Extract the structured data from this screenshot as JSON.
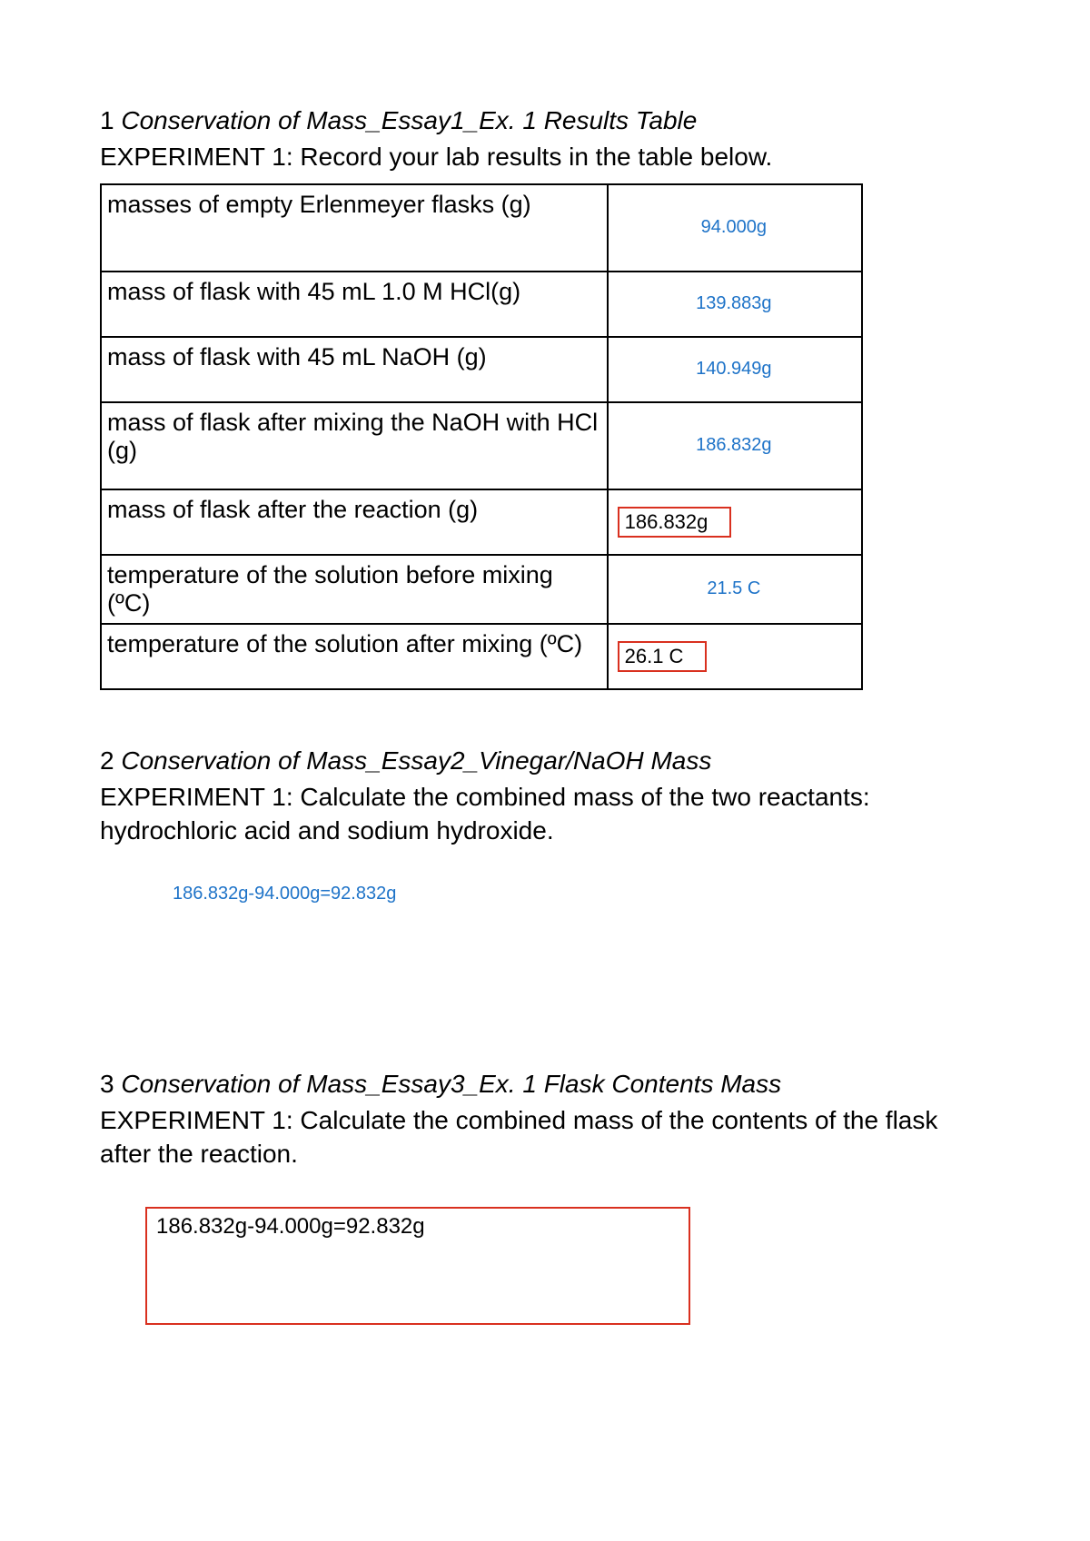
{
  "section1": {
    "num": "1",
    "title": "Conservation of Mass_Essay1_Ex. 1 Results Table",
    "subtitle": "EXPERIMENT 1: Record your lab results in the table below.",
    "rows": [
      {
        "label": "masses of empty Erlenmeyer flasks (g)",
        "value": "94.000g",
        "boxed": false,
        "tall": true
      },
      {
        "label": "mass of flask with 45 mL  1.0 M HCl(g)",
        "value": "139.883g",
        "boxed": false,
        "tall": false
      },
      {
        "label": "mass of flask with 45 mL NaOH (g)",
        "value": "140.949g",
        "boxed": false,
        "tall": false
      },
      {
        "label": "mass of flask after mixing the NaOH with HCl (g)",
        "value": "186.832g",
        "boxed": false,
        "tall": true
      },
      {
        "label": "mass of flask after the reaction (g)",
        "value": "186.832g",
        "boxed": true,
        "tall": false
      },
      {
        "label": "temperature of the solution before mixing (ºC)",
        "value": "21.5 C",
        "boxed": false,
        "tall": false
      },
      {
        "label": "temperature of the solution after mixing (ºC)",
        "value": "26.1 C",
        "boxed": true,
        "tall": false
      }
    ]
  },
  "section2": {
    "num": "2",
    "title": "Conservation of Mass_Essay2_Vinegar/NaOH Mass",
    "subtitle": "EXPERIMENT 1: Calculate the combined mass of the two reactants: hydrochloric acid and sodium hydroxide.",
    "answer": "186.832g-94.000g=92.832g"
  },
  "section3": {
    "num": "3",
    "title": "Conservation of Mass_Essay3_Ex. 1 Flask Contents Mass",
    "subtitle": "EXPERIMENT 1: Calculate the combined mass of the contents of the flask after the reaction.",
    "answer": "186.832g-94.000g=92.832g"
  },
  "colors": {
    "text": "#000000",
    "blue_answer": "#1e73c8",
    "red_box": "#d9301f",
    "background": "#ffffff",
    "table_border": "#000000"
  }
}
